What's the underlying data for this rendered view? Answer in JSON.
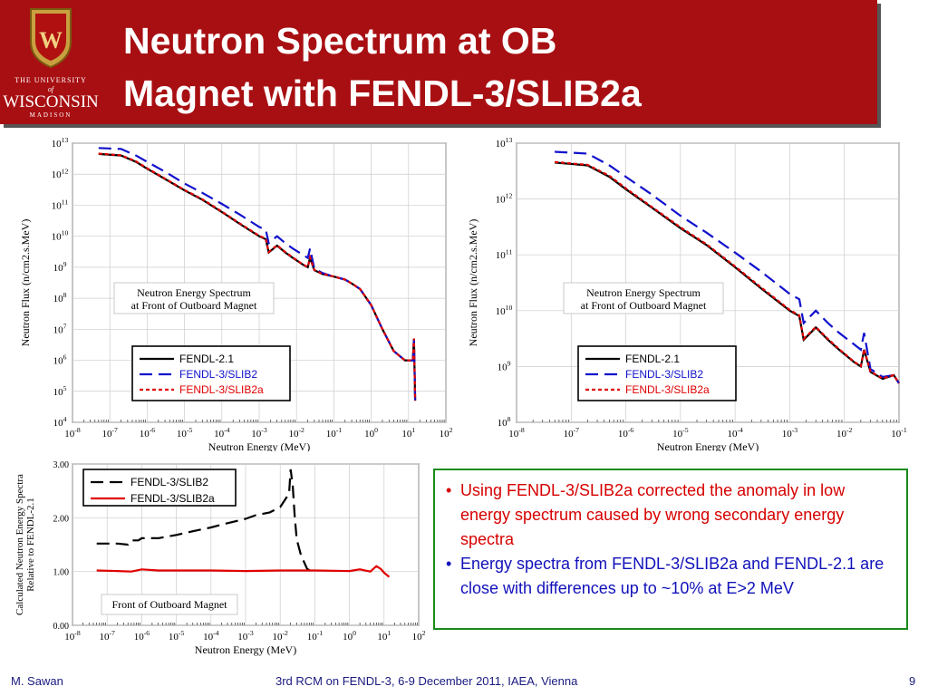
{
  "slide": {
    "title_line1": "Neutron Spectrum at OB",
    "title_line2": "Magnet with FENDL-3/SLIB2a",
    "logo": {
      "line1": "THE UNIVERSITY",
      "line2": "of",
      "line3": "WISCONSIN",
      "line4": "MADISON",
      "crest_letter": "W"
    },
    "footer_left": "M. Sawan",
    "footer_center": "3rd RCM on FENDL-3,  6-9 December 2011, IAEA, Vienna",
    "page_number": "9"
  },
  "notes": {
    "bullet1": "Using FENDL-3/SLIB2a corrected the anomaly in low energy spectrum caused by wrong secondary energy spectra",
    "bullet2": "Energy spectra from FENDL-3/SLIB2a and FENDL-2.1 are close with differences up to ~10% at E>2 MeV"
  },
  "colors": {
    "banner": "#a80f12",
    "fendl21": "#000000",
    "slib2": "#1111cc",
    "slib2a": "#e00000",
    "notes_border": "#1a8a1a"
  },
  "chart_data": [
    {
      "type": "line",
      "xlabel": "Neutron Energy (MeV)",
      "ylabel": "Neutron Flux (n/cm2.s.MeV)",
      "xscale": "log",
      "yscale": "log",
      "xlim": [
        1e-08,
        100
      ],
      "ylim": [
        10000.0,
        10000000000000.0
      ],
      "annotation": [
        "Neutron Energy Spectrum",
        "at Front of Outboard Magnet"
      ],
      "legend_position": "bottom-left",
      "series": [
        {
          "name": "FENDL-2.1",
          "style": "solid",
          "color": "#000000",
          "x": [
            5e-08,
            2e-07,
            5e-07,
            1e-06,
            3e-06,
            1e-05,
            3e-05,
            0.0001,
            0.0003,
            0.001,
            0.0015,
            0.0018,
            0.003,
            0.005,
            0.008,
            0.015,
            0.02,
            0.023,
            0.03,
            0.05,
            0.1,
            0.2,
            0.3,
            0.5,
            1,
            2,
            4,
            8,
            12,
            13,
            14,
            15
          ],
          "y": [
            4500000000000.0,
            4000000000000.0,
            2500000000000.0,
            1500000000000.0,
            700000000000.0,
            300000000000.0,
            150000000000.0,
            60000000000.0,
            25000000000.0,
            10000000000.0,
            8000000000.0,
            3000000000.0,
            5000000000.0,
            3000000000.0,
            2000000000.0,
            1200000000.0,
            1000000000.0,
            2000000000.0,
            800000000.0,
            600000000.0,
            500000000.0,
            400000000.0,
            300000000.0,
            200000000.0,
            60000000.0,
            10000000.0,
            2000000.0,
            1000000.0,
            1000000.0,
            1000000.0,
            5000000.0,
            50000.0
          ]
        },
        {
          "name": "FENDL-3/SLIB2",
          "style": "dash",
          "color": "#1111cc",
          "x": [
            5e-08,
            2e-07,
            5e-07,
            1e-06,
            3e-06,
            1e-05,
            3e-05,
            0.0001,
            0.0003,
            0.001,
            0.0015,
            0.0018,
            0.003,
            0.005,
            0.008,
            0.015,
            0.02,
            0.023,
            0.03,
            0.05,
            0.1,
            0.2,
            0.3,
            0.5,
            1,
            2,
            4,
            8,
            12,
            13,
            14,
            15
          ],
          "y": [
            7000000000000.0,
            6500000000000.0,
            4000000000000.0,
            2500000000000.0,
            1200000000000.0,
            500000000000.0,
            250000000000.0,
            110000000000.0,
            50000000000.0,
            20000000000.0,
            16000000000.0,
            6000000000.0,
            10000000000.0,
            6000000000.0,
            4000000000.0,
            2500000000.0,
            2000000000.0,
            4000000000.0,
            900000000.0,
            650000000.0,
            500000000.0,
            400000000.0,
            300000000.0,
            200000000.0,
            60000000.0,
            10000000.0,
            2000000.0,
            1000000.0,
            1000000.0,
            1000000.0,
            5000000.0,
            50000.0
          ]
        },
        {
          "name": "FENDL-3/SLIB2a",
          "style": "dot",
          "color": "#e00000",
          "x": [
            5e-08,
            2e-07,
            5e-07,
            1e-06,
            3e-06,
            1e-05,
            3e-05,
            0.0001,
            0.0003,
            0.001,
            0.0015,
            0.0018,
            0.003,
            0.005,
            0.008,
            0.015,
            0.02,
            0.023,
            0.03,
            0.05,
            0.1,
            0.2,
            0.3,
            0.5,
            1,
            2,
            4,
            8,
            12,
            13,
            14,
            15
          ],
          "y": [
            4600000000000.0,
            4100000000000.0,
            2600000000000.0,
            1550000000000.0,
            720000000000.0,
            310000000000.0,
            155000000000.0,
            62000000000.0,
            26000000000.0,
            10300000000.0,
            8200000000.0,
            3100000000.0,
            5100000000.0,
            3100000000.0,
            2050000000.0,
            1220000000.0,
            1020000000.0,
            2050000000.0,
            810000000.0,
            610000000.0,
            500000000.0,
            400000000.0,
            300000000.0,
            200000000.0,
            60000000.0,
            10000000.0,
            2000000.0,
            1000000.0,
            1000000.0,
            1000000.0,
            5000000.0,
            50000.0
          ]
        }
      ]
    },
    {
      "type": "line",
      "xlabel": "Neutron Energy (MeV)",
      "ylabel": "Neutron Flux (n/cm2.s.MeV)",
      "xscale": "log",
      "yscale": "log",
      "xlim": [
        1e-08,
        0.1
      ],
      "ylim": [
        100000000.0,
        10000000000000.0
      ],
      "annotation": [
        "Neutron Energy Spectrum",
        "at Front of Outboard Magnet"
      ],
      "legend_position": "bottom-center",
      "series": [
        {
          "name": "FENDL-2.1",
          "style": "solid",
          "color": "#000000",
          "x": [
            5e-08,
            2e-07,
            5e-07,
            1e-06,
            3e-06,
            1e-05,
            3e-05,
            0.0001,
            0.0003,
            0.001,
            0.0015,
            0.0018,
            0.003,
            0.005,
            0.008,
            0.015,
            0.02,
            0.023,
            0.03,
            0.05,
            0.08,
            0.1
          ],
          "y": [
            4500000000000.0,
            4000000000000.0,
            2500000000000.0,
            1500000000000.0,
            700000000000.0,
            300000000000.0,
            150000000000.0,
            60000000000.0,
            25000000000.0,
            10000000000.0,
            8000000000.0,
            3000000000.0,
            5000000000.0,
            3000000000.0,
            2000000000.0,
            1200000000.0,
            1000000000.0,
            2000000000.0,
            800000000.0,
            600000000.0,
            700000000.0,
            500000000.0
          ]
        },
        {
          "name": "FENDL-3/SLIB2",
          "style": "dash",
          "color": "#1111cc",
          "x": [
            5e-08,
            2e-07,
            5e-07,
            1e-06,
            3e-06,
            1e-05,
            3e-05,
            0.0001,
            0.0003,
            0.001,
            0.0015,
            0.0018,
            0.003,
            0.005,
            0.008,
            0.015,
            0.02,
            0.023,
            0.03,
            0.05,
            0.08,
            0.1
          ],
          "y": [
            7000000000000.0,
            6500000000000.0,
            4000000000000.0,
            2500000000000.0,
            1200000000000.0,
            500000000000.0,
            250000000000.0,
            110000000000.0,
            50000000000.0,
            20000000000.0,
            16000000000.0,
            6000000000.0,
            10000000000.0,
            6000000000.0,
            4000000000.0,
            2500000000.0,
            2000000000.0,
            4000000000.0,
            900000000.0,
            650000000.0,
            700000000.0,
            500000000.0
          ]
        },
        {
          "name": "FENDL-3/SLIB2a",
          "style": "dot",
          "color": "#e00000",
          "x": [
            5e-08,
            2e-07,
            5e-07,
            1e-06,
            3e-06,
            1e-05,
            3e-05,
            0.0001,
            0.0003,
            0.001,
            0.0015,
            0.0018,
            0.003,
            0.005,
            0.008,
            0.015,
            0.02,
            0.023,
            0.03,
            0.05,
            0.08,
            0.1
          ],
          "y": [
            4600000000000.0,
            4100000000000.0,
            2600000000000.0,
            1550000000000.0,
            720000000000.0,
            310000000000.0,
            155000000000.0,
            62000000000.0,
            26000000000.0,
            10300000000.0,
            8200000000.0,
            3100000000.0,
            5100000000.0,
            3100000000.0,
            2050000000.0,
            1220000000.0,
            1020000000.0,
            2050000000.0,
            810000000.0,
            610000000.0,
            700000000.0,
            500000000.0
          ]
        }
      ]
    },
    {
      "type": "line",
      "xlabel": "Neutron Energy (MeV)",
      "ylabel": "Calculated Neutron Energy Spectra Relative to FENDL-2.1",
      "xscale": "log",
      "yscale": "linear",
      "xlim": [
        1e-08,
        100
      ],
      "ylim": [
        0,
        3
      ],
      "yticks": [
        "0.00",
        "1.00",
        "2.00",
        "3.00"
      ],
      "annotation": [
        "Front of Outboard Magnet"
      ],
      "legend_position": "top-left",
      "series": [
        {
          "name": "FENDL-3/SLIB2",
          "style": "dash",
          "color": "#000000",
          "x": [
            5e-08,
            2e-07,
            4e-07,
            5e-07,
            8e-07,
            1e-06,
            3e-06,
            1e-05,
            3e-05,
            0.0001,
            0.0003,
            0.001,
            0.002,
            0.005,
            0.01,
            0.018,
            0.02,
            0.023,
            0.026,
            0.03,
            0.04,
            0.06,
            0.08,
            0.1
          ],
          "y": [
            1.52,
            1.52,
            1.5,
            1.58,
            1.58,
            1.62,
            1.62,
            1.68,
            1.75,
            1.82,
            1.9,
            1.98,
            2.05,
            2.1,
            2.2,
            2.45,
            2.9,
            2.6,
            2.05,
            1.6,
            1.3,
            1.05,
            1.0,
            1.0
          ]
        },
        {
          "name": "FENDL-3/SLIB2a",
          "style": "solid",
          "color": "#e00000",
          "x": [
            5e-08,
            2e-07,
            5e-07,
            1e-06,
            3e-06,
            1e-05,
            0.0001,
            0.001,
            0.01,
            0.1,
            1,
            2,
            4,
            6,
            8,
            10,
            14
          ],
          "y": [
            1.02,
            1.01,
            1.0,
            1.04,
            1.02,
            1.02,
            1.02,
            1.01,
            1.02,
            1.02,
            1.01,
            1.04,
            1.0,
            1.1,
            1.05,
            0.98,
            0.9
          ]
        }
      ]
    }
  ]
}
